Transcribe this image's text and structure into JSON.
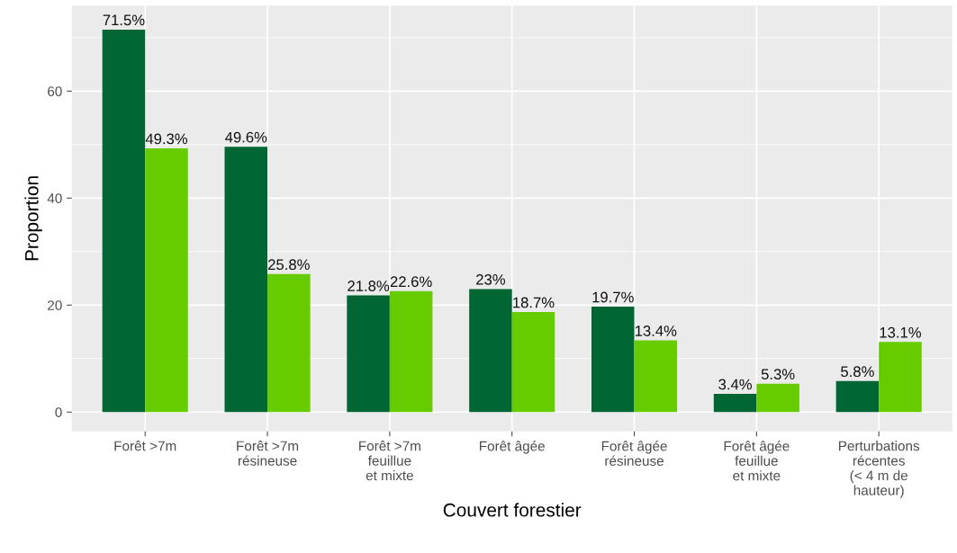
{
  "chart_data": {
    "type": "bar",
    "xlabel": "Couvert forestier",
    "ylabel": "Proportion",
    "categories": [
      "Forêt >7m",
      "Forêt >7m\nrésineuse",
      "Forêt >7m\nfeuillue\net mixte",
      "Forêt âgée",
      "Forêt âgée\nrésineuse",
      "Forêt âgée\nfeuillue\net mixte",
      "Perturbations\nrécentes\n(< 4 m de\nhauteur)"
    ],
    "series": [
      {
        "color": "#006633",
        "values": [
          71.5,
          49.6,
          21.8,
          23,
          19.7,
          3.4,
          5.8
        ],
        "value_labels": [
          "71.5%",
          "49.6%",
          "21.8%",
          "23%",
          "19.7%",
          "3.4%",
          "5.8%"
        ]
      },
      {
        "color": "#66cc00",
        "values": [
          49.3,
          25.8,
          22.6,
          18.7,
          13.4,
          5.3,
          13.1
        ],
        "value_labels": [
          "49.3%",
          "25.8%",
          "22.6%",
          "18.7%",
          "13.4%",
          "5.3%",
          "13.1%"
        ]
      }
    ],
    "ylim": [
      -3.6,
      76
    ],
    "yticks": [
      0,
      20,
      40,
      60
    ],
    "grid": true
  }
}
